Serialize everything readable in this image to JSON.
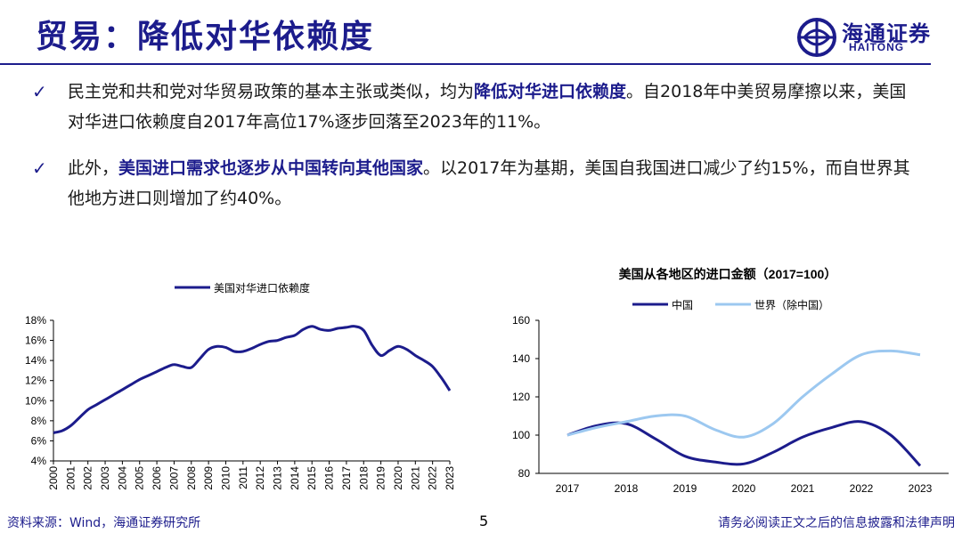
{
  "header": {
    "title": "贸易：降低对华依赖度",
    "logo_cn": "海通证券",
    "logo_en": "HAITONG"
  },
  "bullets": [
    {
      "pre": "民主党和共和党对华贸易政策的基本主张或类似，均为",
      "highlight": "降低对华进口依赖度",
      "post": "。自2018年中美贸易摩擦以来，美国对华进口依赖度自2017年高位17%逐步回落至2023年的11%。"
    },
    {
      "pre": "此外，",
      "highlight": "美国进口需求也逐步从中国转向其他国家",
      "post": "。以2017年为基期，美国自我国进口减少了约15%，而自世界其他地方进口则增加了约40%。"
    }
  ],
  "chart_data": [
    {
      "type": "line",
      "title": "",
      "legend_position": "top",
      "series": [
        {
          "name": "美国对华进口依赖度",
          "color": "#1c1c8c",
          "x": [
            2000,
            2000.5,
            2001,
            2001.5,
            2002,
            2002.5,
            2003,
            2003.5,
            2004,
            2004.5,
            2005,
            2005.5,
            2006,
            2006.5,
            2007,
            2007.5,
            2008,
            2008.5,
            2009,
            2009.5,
            2010,
            2010.5,
            2011,
            2011.5,
            2012,
            2012.5,
            2013,
            2013.5,
            2014,
            2014.5,
            2015,
            2015.5,
            2016,
            2016.5,
            2017,
            2017.5,
            2018,
            2018.5,
            2019,
            2019.5,
            2020,
            2020.5,
            2021,
            2021.5,
            2022,
            2022.5,
            2023
          ],
          "values": [
            6.8,
            7.0,
            7.5,
            8.3,
            9.1,
            9.6,
            10.1,
            10.6,
            11.1,
            11.6,
            12.1,
            12.5,
            12.9,
            13.3,
            13.6,
            13.4,
            13.3,
            14.2,
            15.1,
            15.4,
            15.3,
            14.9,
            14.9,
            15.2,
            15.6,
            15.9,
            16.0,
            16.3,
            16.5,
            17.1,
            17.4,
            17.1,
            17.0,
            17.2,
            17.3,
            17.4,
            17.0,
            15.5,
            14.5,
            15.0,
            15.4,
            15.1,
            14.5,
            14.0,
            13.4,
            12.3,
            11.0
          ]
        }
      ],
      "ylim": [
        4,
        18
      ],
      "yticks": [
        "4%",
        "6%",
        "8%",
        "10%",
        "12%",
        "14%",
        "16%",
        "18%"
      ],
      "xticks": [
        "2000",
        "2001",
        "2002",
        "2003",
        "2004",
        "2005",
        "2006",
        "2007",
        "2008",
        "2009",
        "2010",
        "2011",
        "2012",
        "2013",
        "2014",
        "2015",
        "2016",
        "2017",
        "2018",
        "2019",
        "2020",
        "2021",
        "2022",
        "2023"
      ]
    },
    {
      "type": "line",
      "title": "美国从各地区的进口金额（2017=100）",
      "legend_position": "top",
      "series": [
        {
          "name": "中国",
          "color": "#1c1c8c",
          "x": [
            2017,
            2017.5,
            2018,
            2018.5,
            2019,
            2019.5,
            2020,
            2020.5,
            2021,
            2021.5,
            2022,
            2022.5,
            2023
          ],
          "values": [
            100,
            105,
            106,
            98,
            89,
            86,
            85,
            91,
            99,
            104,
            107,
            100,
            84
          ]
        },
        {
          "name": "世界（除中国）",
          "color": "#9cc8f0",
          "x": [
            2017,
            2017.5,
            2018,
            2018.5,
            2019,
            2019.5,
            2020,
            2020.5,
            2021,
            2021.5,
            2022,
            2022.5,
            2023
          ],
          "values": [
            100,
            104,
            107,
            110,
            110,
            103,
            99,
            106,
            120,
            132,
            142,
            144,
            142
          ]
        }
      ],
      "ylim": [
        80,
        160
      ],
      "yticks": [
        "80",
        "100",
        "120",
        "140",
        "160"
      ],
      "xticks": [
        "2017",
        "2018",
        "2019",
        "2020",
        "2021",
        "2022",
        "2023"
      ]
    }
  ],
  "footer": {
    "source": "资料来源：Wind，海通证券研究所",
    "page": "5",
    "disclaimer": "请务必阅读正文之后的信息披露和法律声明"
  }
}
